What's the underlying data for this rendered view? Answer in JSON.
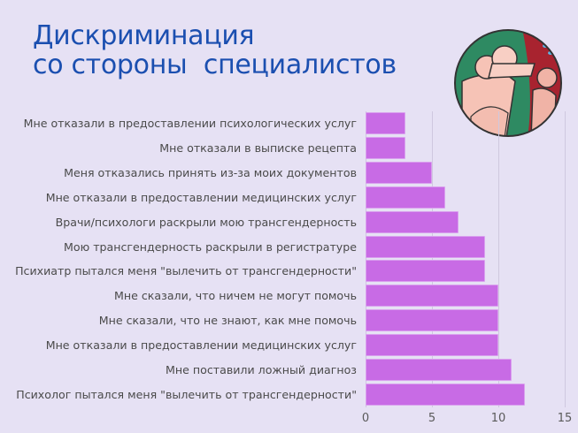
{
  "title": "Дискриминация\nсо стороны  специалистов",
  "illustration": {
    "name": "people-hugging-illustration",
    "colors": {
      "green": "#2e8a62",
      "red": "#a8232f",
      "skin": "#f6c3b6"
    }
  },
  "chart_data": {
    "type": "bar",
    "orientation": "horizontal",
    "title": "Дискриминация со стороны специалистов",
    "xlabel": "",
    "ylabel": "",
    "xlim": [
      0,
      15
    ],
    "x_ticks": [
      "0",
      "5",
      "10",
      "15"
    ],
    "grid": true,
    "bar_color": "#c86be5",
    "categories": [
      "Мне отказали в предоставлении психологических услуг",
      "Мне отказали в выписке рецепта",
      "Меня отказались принять из-за моих документов",
      "Мне отказали в предоставлении медицинских услуг",
      "Врачи/психологи раскрыли мою трансгендерность",
      "Мою трансгендерность раскрыли в регистратуре",
      "Психиатр пытался меня \"вылечить от трансгендерности\"",
      "Мне сказали, что ничем не могут помочь",
      "Мне сказали, что не знают, как мне помочь",
      "Мне отказали в предоставлении медицинских услуг",
      "Мне поставили ложный диагноз",
      "Психолог пытался меня \"вылечить от трансгендерности\""
    ],
    "values": [
      3,
      3,
      5,
      6,
      7,
      9,
      9,
      10,
      10,
      10,
      11,
      12
    ]
  }
}
